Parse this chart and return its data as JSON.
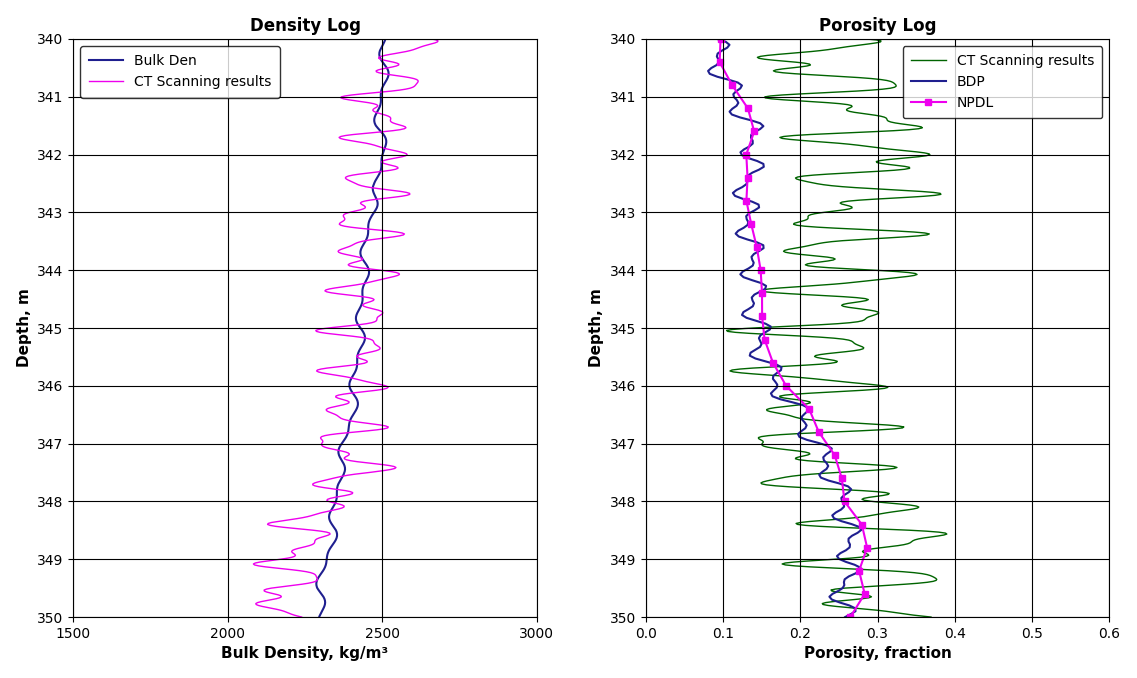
{
  "title_density": "Density Log",
  "title_porosity": "Porosity Log",
  "xlabel_density": "Bulk Density, kg/m³",
  "xlabel_porosity": "Porosity, fraction",
  "ylabel": "Depth, m",
  "depth_min": 340,
  "depth_max": 350,
  "density_xlim": [
    1500,
    3000
  ],
  "density_xticks": [
    1500,
    2000,
    2500,
    3000
  ],
  "porosity_xlim": [
    0,
    0.6
  ],
  "porosity_xticks": [
    0,
    0.1,
    0.2,
    0.3,
    0.4,
    0.5,
    0.6
  ],
  "bulk_den_color": "#1F1F8F",
  "ct_density_color": "#EE00EE",
  "ct_porosity_color": "#006400",
  "bdp_color": "#1F1F8F",
  "npdl_color": "#EE00EE",
  "background_color": "#FFFFFF",
  "title_fontsize": 12,
  "label_fontsize": 11,
  "tick_fontsize": 10,
  "legend_fontsize": 10
}
